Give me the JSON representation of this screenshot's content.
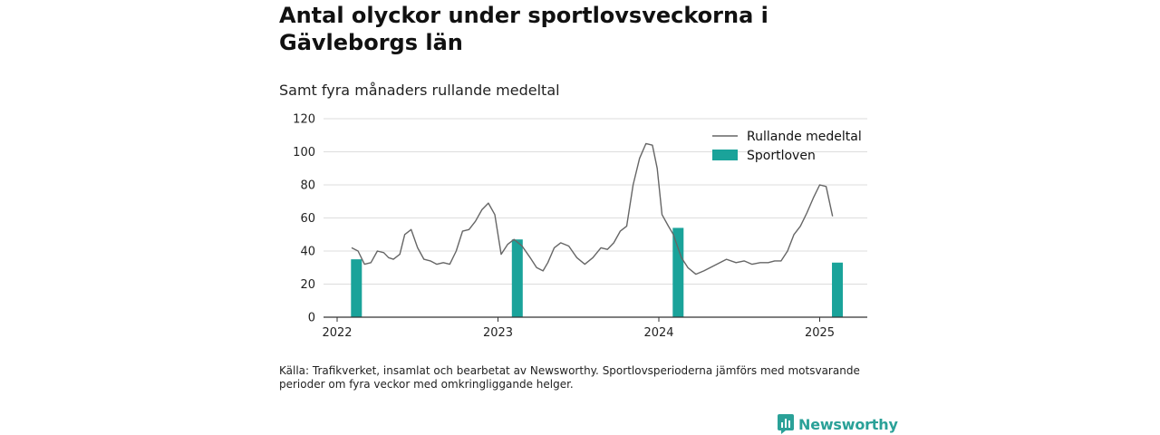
{
  "title": "Antal olyckor under sportlovsveckorna i Gävleborgs län",
  "subtitle": "Samt fyra månaders rullande medeltal",
  "footnote": "Källa: Trafikverket, insamlat och bearbetat av Newsworthy. Sportlovsperioderna jämförs med motsvarande perioder om fyra veckor med omkringliggande helger.",
  "brand": {
    "name": "Newsworthy",
    "icon": "newsworthy-logo-icon",
    "color": "#2aa198"
  },
  "colors": {
    "bar": "#1aa39a",
    "line": "#666666",
    "grid": "#dddddd",
    "axis": "#333333"
  },
  "chart_data": {
    "type": "bar+line",
    "title": "Antal olyckor under sportlovsveckorna i Gävleborgs län",
    "subtitle": "Samt fyra månaders rullande medeltal",
    "xlabel": "",
    "ylabel": "",
    "ylim": [
      0,
      120
    ],
    "yticks": [
      0,
      20,
      40,
      60,
      80,
      100,
      120
    ],
    "xlim": [
      2022.0,
      2025.3
    ],
    "xticks": [
      2022,
      2023,
      2024,
      2025
    ],
    "grid": true,
    "legend": {
      "placement": "top-right",
      "entries": [
        "Rullande medeltal",
        "Sportloven"
      ]
    },
    "series": [
      {
        "name": "Sportloven",
        "type": "bar",
        "x": [
          2022.12,
          2023.12,
          2024.12,
          2025.11
        ],
        "values": [
          35,
          47,
          54,
          33
        ]
      },
      {
        "name": "Rullande medeltal",
        "type": "line",
        "x": [
          2022.09,
          2022.13,
          2022.17,
          2022.21,
          2022.25,
          2022.29,
          2022.32,
          2022.35,
          2022.39,
          2022.42,
          2022.46,
          2022.5,
          2022.54,
          2022.58,
          2022.62,
          2022.66,
          2022.7,
          2022.74,
          2022.78,
          2022.82,
          2022.86,
          2022.9,
          2022.94,
          2022.98,
          2023.02,
          2023.06,
          2023.1,
          2023.15,
          2023.2,
          2023.24,
          2023.28,
          2023.31,
          2023.35,
          2023.39,
          2023.44,
          2023.49,
          2023.54,
          2023.59,
          2023.64,
          2023.68,
          2023.72,
          2023.76,
          2023.8,
          2023.84,
          2023.88,
          2023.92,
          2023.96,
          2023.99,
          2024.02,
          2024.06,
          2024.09,
          2024.14,
          2024.18,
          2024.23,
          2024.28,
          2024.32,
          2024.36,
          2024.42,
          2024.48,
          2024.53,
          2024.58,
          2024.63,
          2024.68,
          2024.72,
          2024.76,
          2024.8,
          2024.84,
          2024.88,
          2024.92,
          2024.96,
          2025.0,
          2025.04,
          2025.08
        ],
        "values": [
          42,
          40,
          32,
          33,
          40,
          39,
          36,
          35,
          38,
          50,
          53,
          42,
          35,
          34,
          32,
          33,
          32,
          40,
          52,
          53,
          58,
          65,
          69,
          62,
          38,
          44,
          47,
          43,
          36,
          30,
          28,
          33,
          42,
          45,
          43,
          36,
          32,
          36,
          42,
          41,
          45,
          52,
          55,
          80,
          96,
          105,
          104,
          90,
          62,
          55,
          50,
          36,
          30,
          26,
          28,
          30,
          32,
          35,
          33,
          34,
          32,
          33,
          33,
          34,
          34,
          40,
          50,
          55,
          63,
          72,
          80,
          79,
          61
        ]
      }
    ]
  }
}
